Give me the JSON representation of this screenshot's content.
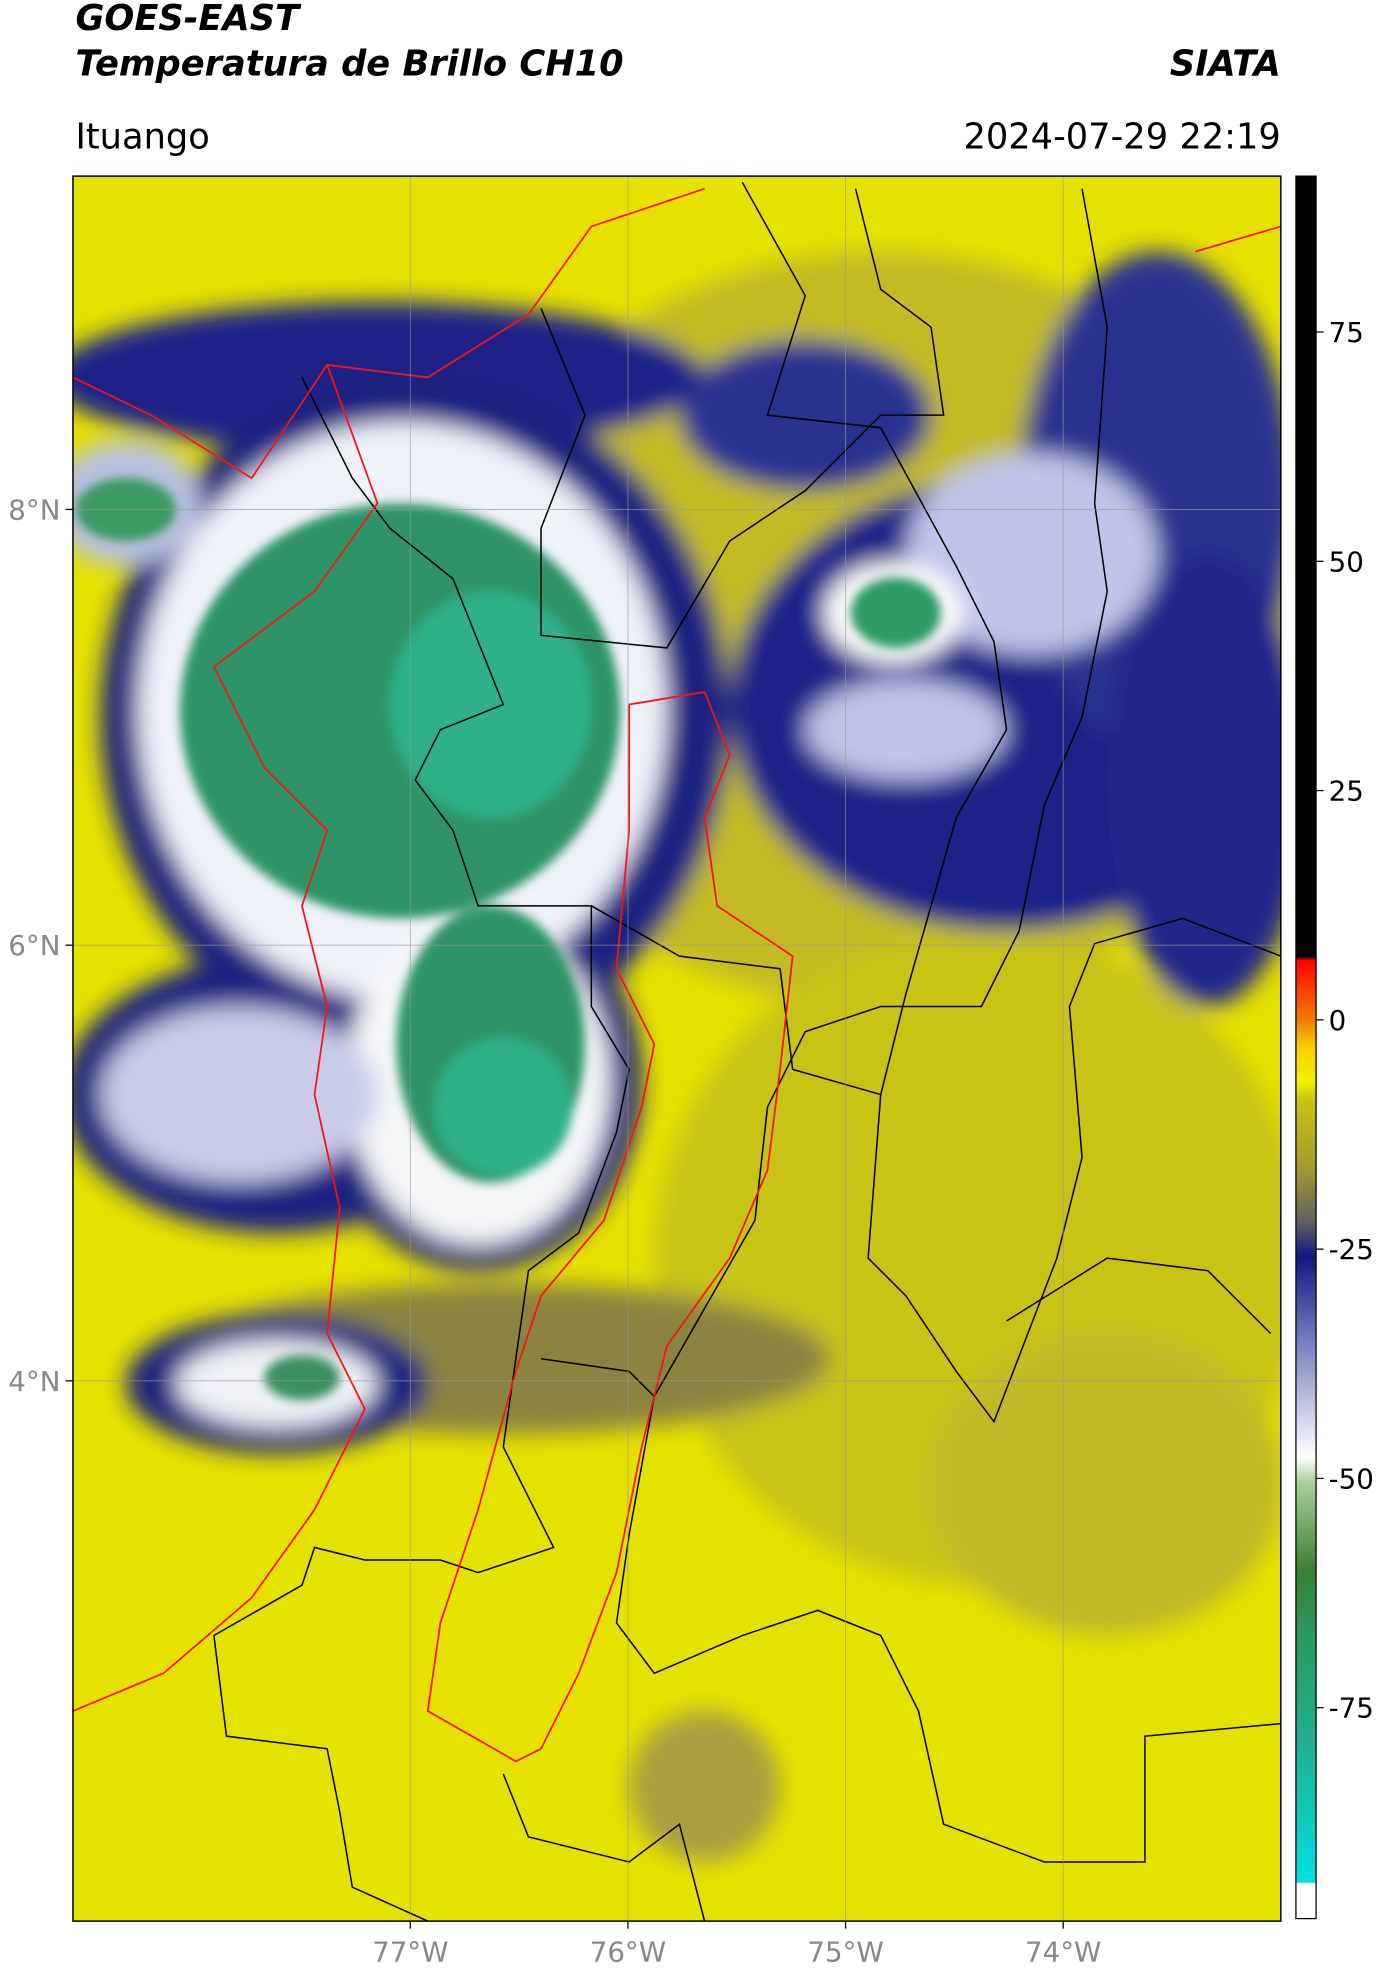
{
  "header": {
    "title": "GOES-EAST",
    "subtitle": "Temperatura de Brillo CH10",
    "source": "SIATA",
    "location": "Ituango",
    "datetime": "2024-07-29 22:19"
  },
  "map": {
    "lonlim": [
      -78.55,
      -73.0
    ],
    "latlim": [
      1.52,
      9.53
    ],
    "lat_ticks": [
      {
        "value": 8,
        "label": "8°N"
      },
      {
        "value": 6,
        "label": "6°N"
      },
      {
        "value": 4,
        "label": "4°N"
      }
    ],
    "lon_ticks": [
      {
        "value": -77,
        "label": "77°W"
      },
      {
        "value": -76,
        "label": "76°W"
      },
      {
        "value": -75,
        "label": "75°W"
      },
      {
        "value": -74,
        "label": "74°W"
      }
    ],
    "grid": true
  },
  "colorbar": {
    "lim": [
      -98,
      92
    ],
    "ticks": [
      75,
      50,
      25,
      0,
      -25,
      -50,
      -75
    ]
  }
}
